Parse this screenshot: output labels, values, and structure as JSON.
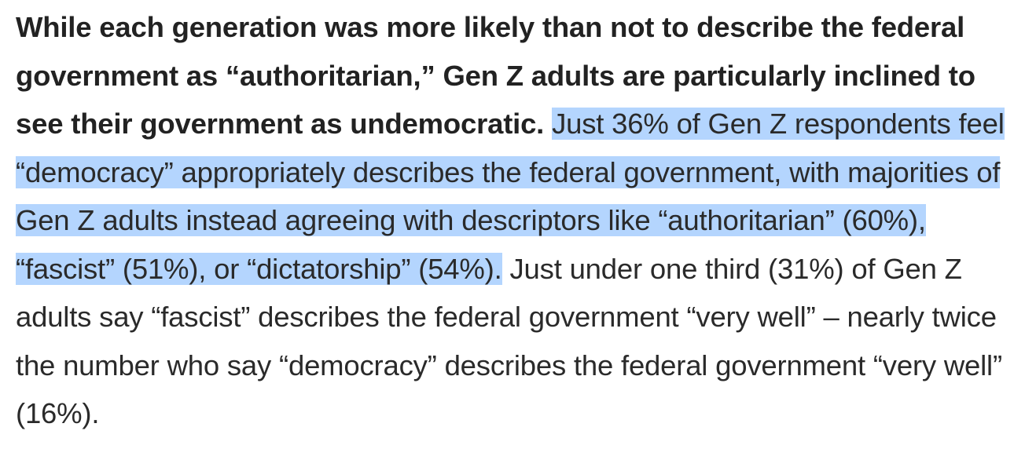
{
  "article": {
    "lead_bold": "While each generation was more likely than not to describe the federal government as “authoritarian,” Gen Z adults are particularly inclined to see their government as undemocratic.",
    "selected_text": "Just 36% of Gen Z respondents feel “democracy” appropriately describes the federal government, with majorities of Gen Z adults instead agreeing with descriptors like “authoritarian” (60%), “fascist” (51%), or “dictatorship” (54%).",
    "trailing_text": "Just under one third (31%) of Gen Z adults say “fascist” describes the federal government “very well” – nearly twice the number who say “democracy” describes the federal government “very well” (16%).",
    "selection_color": "#b4d5fe"
  }
}
